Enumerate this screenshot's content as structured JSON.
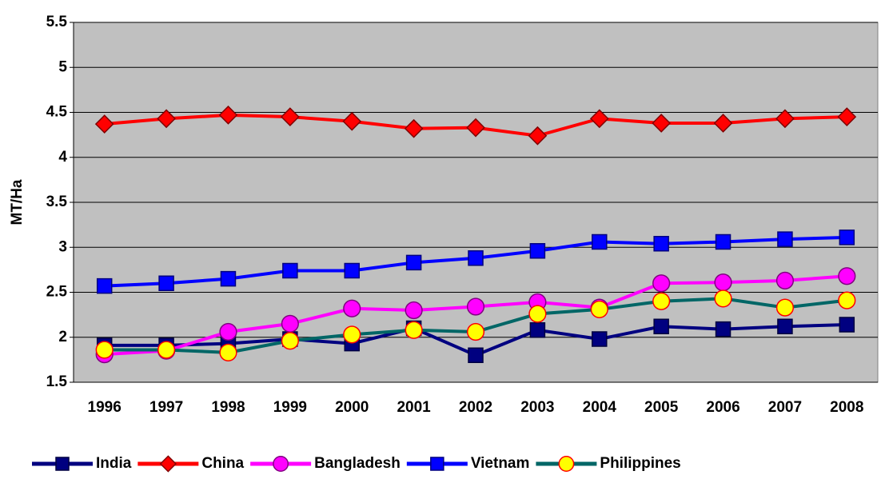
{
  "chart_data": {
    "type": "line",
    "y_label": "MT/Ha",
    "categories": [
      "1996",
      "1997",
      "1998",
      "1999",
      "2000",
      "2001",
      "2002",
      "2003",
      "2004",
      "2005",
      "2006",
      "2007",
      "2008"
    ],
    "ylim": [
      1.5,
      5.5
    ],
    "yticks": [
      1.5,
      2,
      2.5,
      3,
      3.5,
      4,
      4.5,
      5,
      5.5
    ],
    "grid": true,
    "series": [
      {
        "name": "India",
        "color": "#000080",
        "marker": "square",
        "marker_fill": "#000080",
        "marker_edge": "#000040",
        "values": [
          1.91,
          1.91,
          1.93,
          1.98,
          1.93,
          2.1,
          1.8,
          2.08,
          1.98,
          2.12,
          2.09,
          2.12,
          2.14
        ]
      },
      {
        "name": "China",
        "color": "#ff0000",
        "marker": "diamond",
        "marker_fill": "#ff0000",
        "marker_edge": "#800000",
        "values": [
          4.37,
          4.43,
          4.47,
          4.45,
          4.4,
          4.32,
          4.33,
          4.24,
          4.43,
          4.38,
          4.38,
          4.43,
          4.45
        ]
      },
      {
        "name": "Bangladesh",
        "color": "#ff00ff",
        "marker": "circle",
        "marker_fill": "#ff00ff",
        "marker_edge": "#800080",
        "values": [
          1.81,
          1.85,
          2.06,
          2.15,
          2.32,
          2.3,
          2.34,
          2.39,
          2.33,
          2.6,
          2.61,
          2.63,
          2.68
        ]
      },
      {
        "name": "Vietnam",
        "color": "#0000ff",
        "marker": "square",
        "marker_fill": "#0000ff",
        "marker_edge": "#000080",
        "values": [
          2.57,
          2.6,
          2.65,
          2.74,
          2.74,
          2.83,
          2.88,
          2.96,
          3.06,
          3.04,
          3.06,
          3.09,
          3.11
        ]
      },
      {
        "name": "Philippines",
        "color": "#006666",
        "marker": "circle",
        "marker_fill": "#ffff00",
        "marker_edge": "#ff0000",
        "values": [
          1.86,
          1.86,
          1.83,
          1.96,
          2.03,
          2.08,
          2.06,
          2.26,
          2.31,
          2.4,
          2.43,
          2.33,
          2.41
        ]
      }
    ]
  }
}
